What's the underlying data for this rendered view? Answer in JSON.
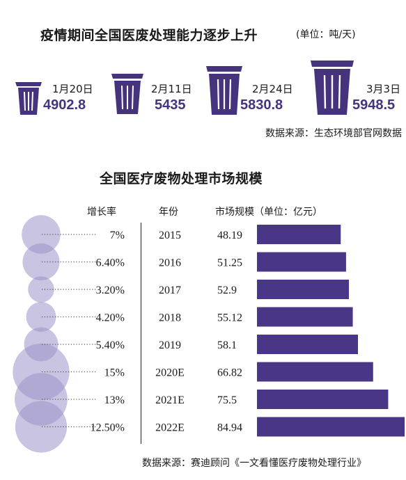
{
  "top": {
    "title": "疫情期间全国医废处理能力逐步上升",
    "unit": "(单位：吨/天)",
    "bins": [
      {
        "date": "1月20日",
        "value": "4902.8"
      },
      {
        "date": "2月11日",
        "value": "5435"
      },
      {
        "date": "2月24日",
        "value": "5830.8"
      },
      {
        "date": "3月3日",
        "value": "5948.5"
      }
    ],
    "source": "数据来源：生态环境部官网数据"
  },
  "bottom": {
    "title": "全国医疗废物处理市场规模",
    "headers": {
      "growth": "增长率",
      "year": "年份",
      "size": "市场规模（单位：亿元）"
    },
    "source": "数据来源：赛迪顾问《一文看懂医疗废物处理行业》"
  },
  "colors": {
    "bar": "#4a3687",
    "bubble": "#9b93c9",
    "bin": "#46337d"
  },
  "chart_data": [
    {
      "type": "bar",
      "categories": [
        "1月20日",
        "2月11日",
        "2月24日",
        "3月3日"
      ],
      "values": [
        4902.8,
        5435,
        5830.8,
        5948.5
      ],
      "title": "疫情期间全国医废处理能力逐步上升",
      "unit": "吨/天"
    },
    {
      "type": "bar",
      "orientation": "horizontal",
      "title": "全国医疗废物处理市场规模",
      "categories": [
        "2015",
        "2016",
        "2017",
        "2018",
        "2019",
        "2020E",
        "2021E",
        "2022E"
      ],
      "values": [
        48.19,
        51.25,
        52.9,
        55.12,
        58.1,
        66.82,
        75.5,
        84.94
      ],
      "growth_labels": [
        "7%",
        "6.40%",
        "3.20%",
        "4.20%",
        "5.40%",
        "15%",
        "13%",
        "12.50%"
      ],
      "growth": [
        7,
        6.4,
        3.2,
        4.2,
        5.4,
        15,
        13,
        12.5
      ],
      "unit": "亿元"
    }
  ]
}
